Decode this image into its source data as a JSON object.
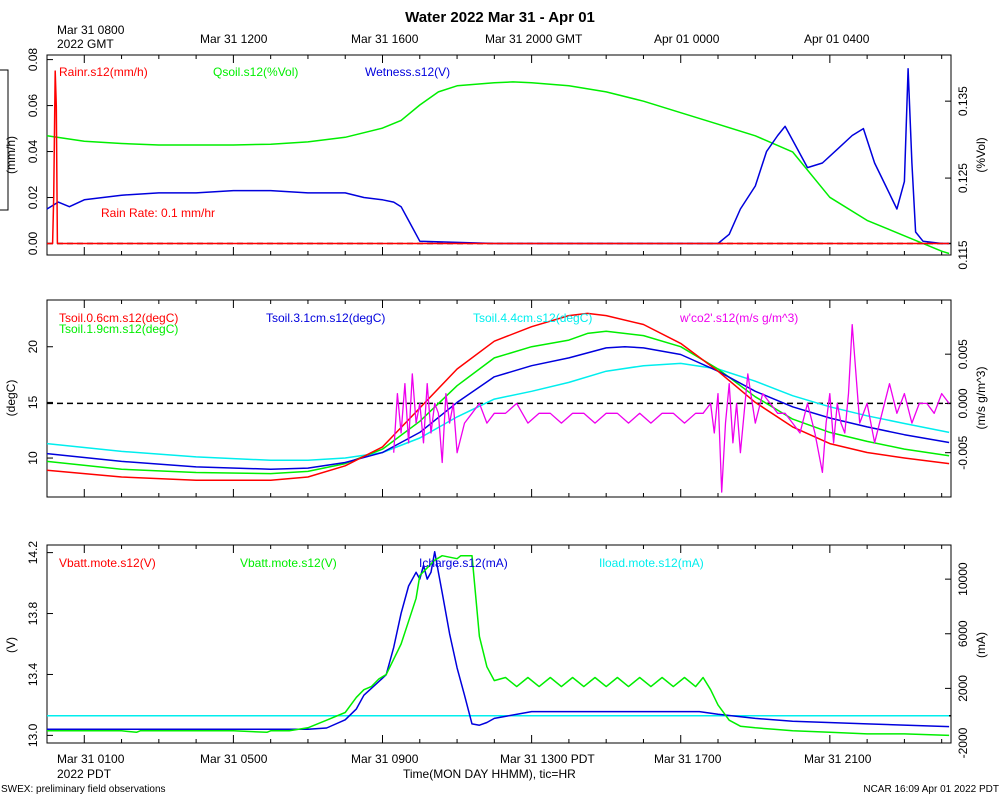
{
  "title": "Water 2022 Mar 31 - Apr 01",
  "top_axis": {
    "first_label": "Mar 31 0800",
    "first_sub": "2022 GMT",
    "labels": [
      "Mar 31 1200",
      "Mar 31 1600",
      "Mar 31 2000 GMT",
      "Apr 01 0000",
      "Apr 01 0400"
    ]
  },
  "bottom_axis": {
    "labels": [
      "Mar 31 0100",
      "Mar 31 0500",
      "Mar 31 0900",
      "Mar 31 1300 PDT",
      "Mar 31 1700",
      "Mar 31 2100"
    ],
    "sub": "2022 PDT",
    "caption": "Time(MON DAY HHMM), tic=HR"
  },
  "footer": {
    "left": "SWEX: preliminary field observations",
    "right": "NCAR 16:09 Apr 01 2022 PDT"
  },
  "colors": {
    "red": "#ff0000",
    "green": "#00ee00",
    "blue": "#0000dd",
    "cyan": "#00eeee",
    "magenta": "#ee00ee"
  },
  "chart_data": [
    {
      "type": "line",
      "name": "rain-soil-wetness",
      "x_unit": "hours since Mar 31 00:00 PDT",
      "xlim": [
        0,
        24.25
      ],
      "ylabel_left": "(mm/h)",
      "ylabel_right": "(%Vol)",
      "ylim_left": [
        -0.005,
        0.082
      ],
      "ylim_right": [
        0.115,
        0.141
      ],
      "yticks_left": [
        "0.00",
        "0.02",
        "0.04",
        "0.06",
        "0.08"
      ],
      "yticks_right": [
        "0.115",
        "0.125",
        "0.135"
      ],
      "annotation": "Rain Rate: 0.1 mm/hr",
      "reference_line": 0.0,
      "series": [
        {
          "name": "Rainr.s12(mm/h)",
          "color": "red",
          "axis": "left",
          "x": [
            0.0,
            0.15,
            0.18,
            0.22,
            0.25,
            0.28,
            0.33,
            0.4,
            24.2
          ],
          "y": [
            0.0,
            0.0,
            0.02,
            0.075,
            0.06,
            0.0,
            0.0,
            0.0,
            0.0
          ]
        },
        {
          "name": "Qsoil.s12(%Vol)",
          "color": "green",
          "axis": "right",
          "x": [
            0,
            1,
            2,
            3,
            4,
            5,
            6,
            7,
            8,
            9,
            9.5,
            10,
            10.5,
            11,
            11.5,
            12,
            12.5,
            13,
            14,
            15,
            16,
            17,
            18,
            19,
            20,
            21,
            22,
            23,
            24,
            24.2
          ],
          "y": [
            0.1305,
            0.1298,
            0.1295,
            0.1293,
            0.1293,
            0.1293,
            0.1294,
            0.1297,
            0.1303,
            0.1315,
            0.1325,
            0.1345,
            0.1362,
            0.137,
            0.1372,
            0.1374,
            0.1375,
            0.1374,
            0.137,
            0.1362,
            0.135,
            0.1335,
            0.132,
            0.1305,
            0.1284,
            0.1225,
            0.1195,
            0.1175,
            0.1155,
            0.1152
          ]
        }
      ]
    },
    {
      "type": "line",
      "name": "wetness-detail",
      "series": [
        {
          "name": "Wetness.s12(V)",
          "color": "blue",
          "axis": "left",
          "x": [
            0.0,
            0.3,
            0.6,
            1.0,
            1.5,
            2.0,
            3.0,
            4.0,
            5.0,
            6.0,
            7.0,
            8.0,
            8.5,
            9.0,
            9.3,
            9.5,
            9.7,
            10.0,
            12.0,
            14.0,
            16.0,
            17.5,
            18.0,
            18.3,
            18.6,
            19.0,
            19.3,
            19.6,
            19.8,
            20.0,
            20.4,
            20.8,
            21.2,
            21.6,
            21.9,
            22.2,
            22.5,
            22.8,
            23.0,
            23.1,
            23.2,
            23.3,
            23.5,
            24.0,
            24.2
          ],
          "y": [
            0.015,
            0.018,
            0.016,
            0.019,
            0.02,
            0.021,
            0.022,
            0.022,
            0.023,
            0.023,
            0.022,
            0.022,
            0.02,
            0.019,
            0.018,
            0.016,
            0.01,
            0.001,
            0.0,
            0.0,
            0.0,
            0.0,
            0.0,
            0.004,
            0.015,
            0.025,
            0.04,
            0.047,
            0.051,
            0.045,
            0.033,
            0.035,
            0.041,
            0.047,
            0.05,
            0.035,
            0.025,
            0.015,
            0.027,
            0.076,
            0.035,
            0.005,
            0.001,
            0.0,
            0.0
          ]
        }
      ]
    },
    {
      "type": "line",
      "name": "soil-temperature",
      "ylabel_left": "(degC)",
      "ylabel_right": "(m/s g/m^3)",
      "ylim_left": [
        6.5,
        24.2
      ],
      "ylim_right": [
        -0.0095,
        0.0105
      ],
      "yticks_left": [
        "10",
        "15",
        "20"
      ],
      "yticks_right": [
        "-0.005",
        "0.000",
        "0.005"
      ],
      "reference_line_right": 0.0,
      "series": [
        {
          "name": "Tsoil.0.6cm.s12(degC)",
          "color": "red",
          "axis": "left",
          "x": [
            0,
            2,
            4,
            6,
            7,
            8,
            9,
            10,
            11,
            12,
            13,
            14,
            14.5,
            15,
            16,
            17,
            18,
            19,
            20,
            21,
            22,
            23,
            24.2
          ],
          "y": [
            8.9,
            8.3,
            8.0,
            8.0,
            8.3,
            9.3,
            11.0,
            14.5,
            18.0,
            20.5,
            21.8,
            22.8,
            23.0,
            22.8,
            22.0,
            20.3,
            17.8,
            15.0,
            12.8,
            11.3,
            10.5,
            10.0,
            9.5
          ]
        },
        {
          "name": "Tsoil.1.9cm.s12(degC)",
          "color": "green",
          "axis": "left",
          "x": [
            0,
            2,
            4,
            6,
            7,
            8,
            9,
            10,
            11,
            12,
            13,
            14,
            14.5,
            15,
            16,
            17,
            18,
            19,
            20,
            21,
            22,
            23,
            24.2
          ],
          "y": [
            9.7,
            9.0,
            8.7,
            8.6,
            8.8,
            9.5,
            10.8,
            13.3,
            16.5,
            19.0,
            20.0,
            20.6,
            21.2,
            21.4,
            21.0,
            20.0,
            18.0,
            15.5,
            13.5,
            12.3,
            11.5,
            10.8,
            10.2
          ]
        },
        {
          "name": "Tsoil.3.1cm.s12(degC)",
          "color": "blue",
          "axis": "left",
          "x": [
            0,
            2,
            4,
            6,
            7,
            8,
            9,
            10,
            11,
            12,
            13,
            14,
            15,
            15.5,
            16,
            17,
            18,
            19,
            20,
            21,
            22,
            23,
            24.2
          ],
          "y": [
            10.4,
            9.7,
            9.2,
            9.0,
            9.1,
            9.6,
            10.5,
            12.3,
            15.0,
            17.3,
            18.3,
            19.0,
            19.9,
            20.0,
            19.9,
            19.3,
            17.8,
            16.0,
            14.6,
            13.6,
            12.8,
            12.1,
            11.4
          ]
        },
        {
          "name": "Tsoil.4.4cm.s12(degC)",
          "color": "cyan",
          "axis": "left",
          "x": [
            0,
            2,
            4,
            6,
            7,
            8,
            9,
            10,
            11,
            12,
            13,
            14,
            15,
            16,
            17,
            18,
            19,
            20,
            21,
            22,
            23,
            24.2
          ],
          "y": [
            11.3,
            10.6,
            10.1,
            9.8,
            9.8,
            10.0,
            10.5,
            11.8,
            13.7,
            15.3,
            16.0,
            16.8,
            17.8,
            18.3,
            18.5,
            18.0,
            16.9,
            15.6,
            14.6,
            13.8,
            13.1,
            12.3
          ]
        },
        {
          "name": "w'co2'.s12(m/s g/m^3)",
          "color": "magenta",
          "axis": "right",
          "x": [
            9.3,
            9.4,
            9.5,
            9.6,
            9.7,
            9.8,
            9.9,
            10.0,
            10.1,
            10.2,
            10.3,
            10.4,
            10.5,
            10.6,
            10.7,
            10.8,
            10.9,
            11.0,
            11.2,
            11.4,
            11.6,
            11.8,
            12.0,
            12.3,
            12.6,
            12.9,
            13.2,
            13.5,
            13.8,
            14.1,
            14.4,
            14.7,
            15.0,
            15.3,
            15.6,
            15.9,
            16.2,
            16.5,
            16.8,
            17.1,
            17.4,
            17.6,
            17.8,
            17.9,
            18.0,
            18.1,
            18.2,
            18.3,
            18.4,
            18.5,
            18.6,
            18.8,
            19.0,
            19.2,
            19.4,
            19.6,
            19.8,
            20.0,
            20.2,
            20.4,
            20.6,
            20.8,
            20.9,
            21.0,
            21.1,
            21.2,
            21.3,
            21.4,
            21.5,
            21.6,
            21.8,
            22.0,
            22.2,
            22.4,
            22.6,
            22.8,
            23.0,
            23.2,
            23.4,
            23.6,
            23.8,
            24.0,
            24.2
          ],
          "y": [
            -0.005,
            0.001,
            -0.003,
            0.002,
            -0.004,
            0.003,
            -0.002,
            0.0,
            -0.004,
            0.002,
            -0.003,
            0.0,
            -0.001,
            -0.006,
            0.001,
            -0.002,
            0.0,
            -0.005,
            -0.002,
            -0.001,
            0.0,
            -0.002,
            -0.001,
            -0.001,
            0.0,
            -0.002,
            -0.001,
            -0.001,
            -0.002,
            -0.001,
            -0.001,
            -0.002,
            -0.001,
            -0.001,
            -0.002,
            -0.001,
            -0.002,
            -0.001,
            -0.001,
            -0.002,
            -0.001,
            -0.001,
            0.0,
            -0.003,
            0.001,
            -0.009,
            -0.002,
            0.002,
            -0.004,
            0.0,
            -0.005,
            0.003,
            -0.002,
            0.001,
            0.0,
            -0.001,
            -0.001,
            -0.002,
            -0.003,
            0.0,
            -0.003,
            -0.007,
            -0.002,
            0.001,
            -0.004,
            0.0,
            -0.002,
            -0.003,
            0.001,
            0.008,
            -0.002,
            0.0,
            -0.004,
            -0.001,
            0.002,
            -0.001,
            0.001,
            -0.002,
            0.0,
            0.0,
            -0.001,
            0.001,
            0.0
          ]
        }
      ]
    },
    {
      "type": "line",
      "name": "battery",
      "ylabel_left": "(V)",
      "ylabel_right": "(mA)",
      "ylim_left": [
        12.95,
        14.25
      ],
      "ylim_right": [
        -2000,
        12500
      ],
      "yticks_left": [
        "13.0",
        "13.4",
        "13.8",
        "14.2"
      ],
      "yticks_right": [
        "-2000",
        "2000",
        "6000",
        "10000"
      ],
      "reference_line_right": 0,
      "series": [
        {
          "name": "Vbatt.mote.s12(V)",
          "color": "red",
          "axis": "left",
          "x": [],
          "y": []
        },
        {
          "name": "Vbatt.mote.s12(V)",
          "color": "green",
          "axis": "left",
          "x": [
            0,
            1,
            2,
            2.4,
            2.5,
            3,
            4,
            5,
            5.9,
            6.0,
            6.5,
            7.0,
            7.5,
            8.0,
            8.3,
            8.5,
            8.7,
            8.9,
            9.1,
            9.3,
            9.5,
            9.7,
            9.9,
            10.0,
            10.2,
            10.4,
            10.6,
            10.8,
            11.0,
            11.1,
            11.2,
            11.4,
            11.6,
            11.8,
            12.0,
            12.3,
            12.6,
            12.9,
            13.2,
            13.5,
            13.8,
            14.1,
            14.4,
            14.7,
            15.0,
            15.3,
            15.6,
            15.9,
            16.2,
            16.5,
            16.8,
            17.1,
            17.4,
            17.6,
            17.8,
            18.0,
            18.3,
            18.6,
            19.0,
            19.5,
            20.0,
            21.0,
            22.0,
            23.0,
            24.2
          ],
          "y": [
            13.03,
            13.03,
            13.03,
            13.02,
            13.03,
            13.03,
            13.03,
            13.03,
            13.02,
            13.03,
            13.03,
            13.05,
            13.1,
            13.15,
            13.25,
            13.3,
            13.32,
            13.37,
            13.4,
            13.5,
            13.6,
            13.75,
            13.9,
            14.05,
            14.1,
            14.15,
            14.18,
            14.17,
            14.16,
            14.18,
            14.18,
            14.18,
            13.65,
            13.45,
            13.36,
            13.38,
            13.32,
            13.38,
            13.32,
            13.38,
            13.32,
            13.38,
            13.32,
            13.38,
            13.32,
            13.38,
            13.32,
            13.38,
            13.32,
            13.38,
            13.32,
            13.38,
            13.32,
            13.38,
            13.3,
            13.2,
            13.1,
            13.06,
            13.05,
            13.04,
            13.03,
            13.02,
            13.01,
            13.01,
            13.0
          ]
        },
        {
          "name": "Icharge.s12(mA)",
          "color": "blue",
          "axis": "right",
          "x": [
            0,
            2,
            4,
            6,
            7,
            7.5,
            8.0,
            8.3,
            8.5,
            8.7,
            8.9,
            9.1,
            9.3,
            9.5,
            9.7,
            9.9,
            10.0,
            10.1,
            10.2,
            10.3,
            10.4,
            10.5,
            10.6,
            10.8,
            11.0,
            11.2,
            11.4,
            11.6,
            11.8,
            12.0,
            13.0,
            14.0,
            15.0,
            16.0,
            17.0,
            17.5,
            18.0,
            19.0,
            20.0,
            22.0,
            24.2
          ],
          "y": [
            -1000,
            -1000,
            -1000,
            -1000,
            -1000,
            -900,
            -300,
            500,
            1500,
            2000,
            2500,
            3000,
            5000,
            7500,
            9500,
            10500,
            10000,
            11000,
            10000,
            10500,
            12000,
            10500,
            9000,
            6000,
            3500,
            1500,
            -600,
            -700,
            -500,
            -200,
            300,
            300,
            300,
            300,
            300,
            300,
            100,
            -200,
            -400,
            -600,
            -800
          ]
        },
        {
          "name": "Iload.mote.s12(mA)",
          "color": "cyan",
          "axis": "right",
          "x": [
            0,
            24.2
          ],
          "y": [
            0,
            0
          ]
        }
      ]
    }
  ]
}
